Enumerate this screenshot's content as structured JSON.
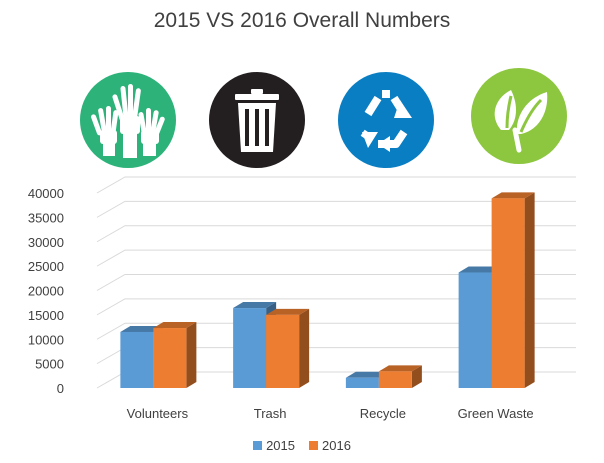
{
  "chart_data": {
    "type": "bar",
    "title": "2015 VS 2016 Overall Numbers",
    "xlabel": "",
    "ylabel": "",
    "categories": [
      "Volunteers",
      "Trash",
      "Recycle",
      "Green Waste"
    ],
    "series": [
      {
        "name": "2015",
        "values": [
          11500,
          16400,
          2100,
          23700
        ],
        "color": "#5B9BD5"
      },
      {
        "name": "2016",
        "values": [
          12300,
          15000,
          3400,
          38900
        ],
        "color": "#ED7D31"
      }
    ],
    "yticks": [
      "0",
      "5000",
      "10000",
      "15000",
      "20000",
      "25000",
      "30000",
      "35000",
      "40000"
    ],
    "ylim": [
      0,
      40000
    ],
    "grid": true,
    "legend": "bottom",
    "style": "3d-clustered-column"
  },
  "icons": [
    {
      "name": "raised-hands-icon",
      "color": "#2DB37A"
    },
    {
      "name": "trash-can-icon",
      "color": "#231F20"
    },
    {
      "name": "recycle-icon",
      "color": "#0A7EC2"
    },
    {
      "name": "leaf-icon",
      "color": "#8DC63F"
    }
  ]
}
